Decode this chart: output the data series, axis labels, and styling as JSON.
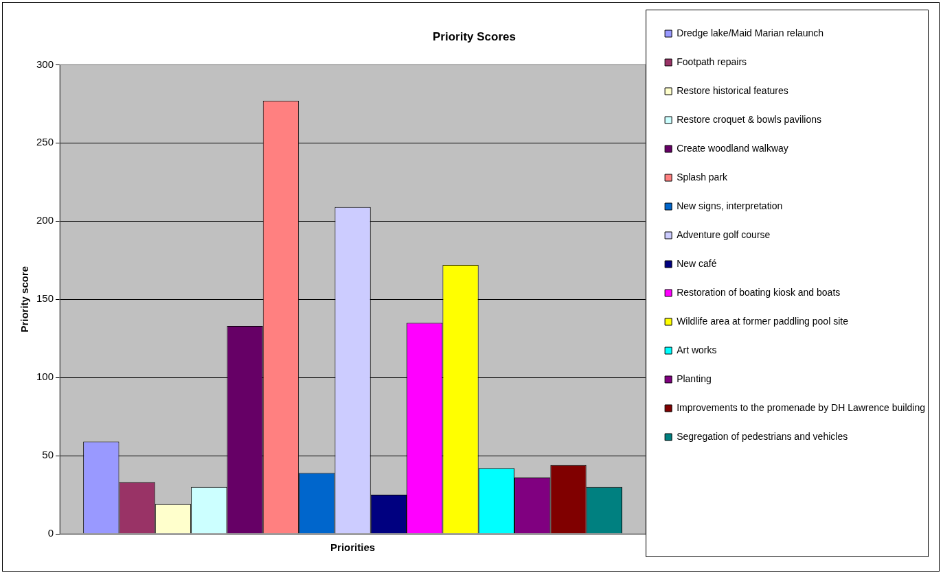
{
  "chart_data": {
    "type": "bar",
    "title": "Priority Scores",
    "xlabel": "Priorities",
    "ylabel": "Priority score",
    "categories": [
      null
    ],
    "series": [
      {
        "name": "Dredge lake/Maid Marian relaunch",
        "color": "#9999ff",
        "values": [
          59
        ]
      },
      {
        "name": "Footpath repairs",
        "color": "#993366",
        "values": [
          33
        ]
      },
      {
        "name": "Restore historical features",
        "color": "#ffffcc",
        "values": [
          19
        ]
      },
      {
        "name": "Restore croquet & bowls pavilions",
        "color": "#ccffff",
        "values": [
          30
        ]
      },
      {
        "name": "Create woodland walkway",
        "color": "#660066",
        "values": [
          133
        ]
      },
      {
        "name": "Splash park",
        "color": "#ff8080",
        "values": [
          277
        ]
      },
      {
        "name": "New signs, interpretation",
        "color": "#0066cc",
        "values": [
          39
        ]
      },
      {
        "name": "Adventure golf course",
        "color": "#ccccff",
        "values": [
          209
        ]
      },
      {
        "name": "New café",
        "color": "#000080",
        "values": [
          25
        ]
      },
      {
        "name": "Restoration of boating kiosk and boats",
        "color": "#ff00ff",
        "values": [
          135
        ]
      },
      {
        "name": "Wildlife area at former paddling pool site",
        "color": "#ffff00",
        "values": [
          172
        ]
      },
      {
        "name": "Art works",
        "color": "#00ffff",
        "values": [
          42
        ]
      },
      {
        "name": "Planting",
        "color": "#800080",
        "values": [
          36
        ]
      },
      {
        "name": "Improvements to the promenade by DH Lawrence building",
        "color": "#800000",
        "values": [
          44
        ]
      },
      {
        "name": "Segregation of pedestrians and vehicles",
        "color": "#008080",
        "values": [
          30
        ]
      }
    ],
    "ylim": [
      0,
      300
    ],
    "yticks": [
      0,
      50,
      100,
      150,
      200,
      250,
      300
    ],
    "grid": "y",
    "legend": "right"
  }
}
